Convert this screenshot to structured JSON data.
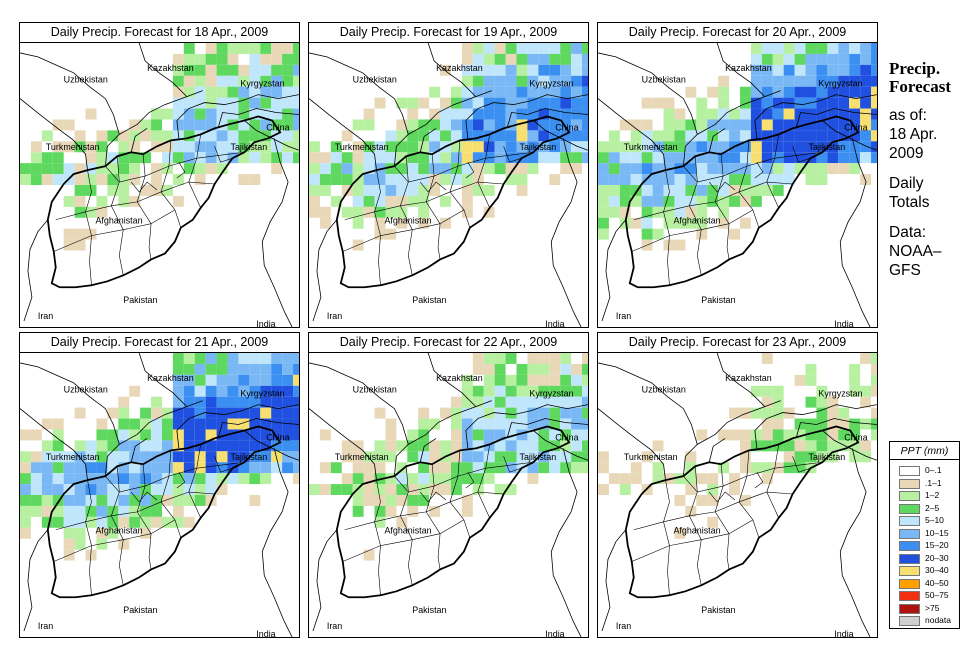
{
  "panels": [
    {
      "title": "Daily Precip. Forecast for  18 Apr., 2009",
      "intensity": 1
    },
    {
      "title": "Daily Precip. Forecast for  19 Apr., 2009",
      "intensity": 2
    },
    {
      "title": "Daily Precip. Forecast for  20 Apr., 2009",
      "intensity": 3
    },
    {
      "title": "Daily Precip. Forecast for  21 Apr., 2009",
      "intensity": 3
    },
    {
      "title": "Daily Precip. Forecast for  22 Apr., 2009",
      "intensity": 1
    },
    {
      "title": "Daily Precip. Forecast for  23 Apr., 2009",
      "intensity": 0
    }
  ],
  "map_labels": {
    "kazakhstan": "Kazakhstan",
    "uzbekistan": "Uzbekistan",
    "kyrgyzstan": "Kyrgyzstan",
    "china": "China",
    "turkmenistan": "Turkmenistan",
    "tajikistan": "Tajikistan",
    "afghanistan": "Afghanistan",
    "iran": "Iran",
    "pakistan": "Pakistan",
    "india": "India"
  },
  "side": {
    "headline_1": "Precip.",
    "headline_2": "Forecast",
    "asof": "as of:",
    "date_1": "18 Apr.",
    "date_2": "2009",
    "totals_1": "Daily",
    "totals_2": "Totals",
    "data_1": "Data:",
    "data_2": "NOAA–",
    "data_3": "GFS"
  },
  "legend": {
    "title": "PPT (mm)",
    "items": [
      {
        "label": "0–.1",
        "color": "#ffffff"
      },
      {
        "label": ".1–1",
        "color": "#e8d8b8"
      },
      {
        "label": "1–2",
        "color": "#b6f0a0"
      },
      {
        "label": "2–5",
        "color": "#5ed85e"
      },
      {
        "label": "5–10",
        "color": "#bfe6fb"
      },
      {
        "label": "10–15",
        "color": "#7ab8f5"
      },
      {
        "label": "15–20",
        "color": "#3a8ff0"
      },
      {
        "label": "20–30",
        "color": "#2050e0"
      },
      {
        "label": "30–40",
        "color": "#f8e070"
      },
      {
        "label": "40–50",
        "color": "#ffa000"
      },
      {
        "label": "50–75",
        "color": "#f03010"
      },
      {
        "label": ">75",
        "color": "#b01010"
      },
      {
        "label": "nodata",
        "color": "#d0d0d0"
      }
    ]
  }
}
